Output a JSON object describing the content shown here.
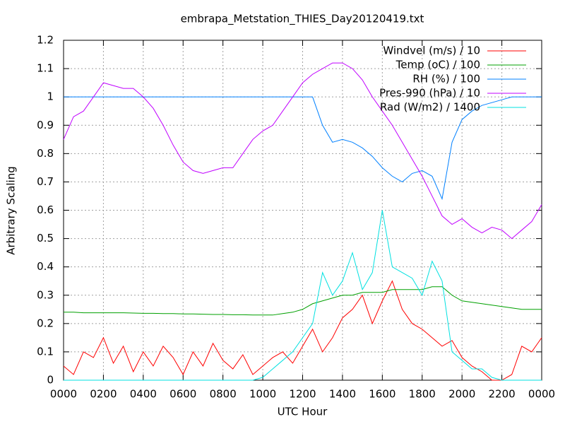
{
  "chart_data": {
    "type": "line",
    "title": "embrapa_Metstation_THIES_Day20120419.txt",
    "x_label": "UTC Hour",
    "y_label": "Arbitrary Scaling",
    "x": [
      0,
      0.5,
      1,
      1.5,
      2,
      2.5,
      3,
      3.5,
      4,
      4.5,
      5,
      5.5,
      6,
      6.5,
      7,
      7.5,
      8,
      8.5,
      9,
      9.5,
      10,
      10.5,
      11,
      11.5,
      12,
      12.5,
      13,
      13.5,
      14,
      14.5,
      15,
      15.5,
      16,
      16.5,
      17,
      17.5,
      18,
      18.5,
      19,
      19.5,
      20,
      20.5,
      21,
      21.5,
      22,
      22.5,
      23,
      23.5,
      24
    ],
    "series": [
      {
        "name": "Windvel (m/s) / 10",
        "color": "#ff0000",
        "values": [
          0.05,
          0.02,
          0.1,
          0.08,
          0.15,
          0.06,
          0.12,
          0.03,
          0.1,
          0.05,
          0.12,
          0.08,
          0.02,
          0.1,
          0.05,
          0.13,
          0.07,
          0.04,
          0.09,
          0.02,
          0.05,
          0.08,
          0.1,
          0.06,
          0.12,
          0.18,
          0.1,
          0.15,
          0.22,
          0.25,
          0.3,
          0.2,
          0.28,
          0.35,
          0.25,
          0.2,
          0.18,
          0.15,
          0.12,
          0.14,
          0.08,
          0.05,
          0.03,
          0,
          0,
          0.02,
          0.12,
          0.1,
          0.15
        ]
      },
      {
        "name": "Temp (oC) / 100",
        "color": "#00a000",
        "values": [
          0.24,
          0.24,
          0.238,
          0.238,
          0.238,
          0.238,
          0.238,
          0.237,
          0.236,
          0.236,
          0.235,
          0.235,
          0.234,
          0.234,
          0.233,
          0.232,
          0.232,
          0.231,
          0.231,
          0.23,
          0.23,
          0.23,
          0.235,
          0.24,
          0.25,
          0.27,
          0.28,
          0.29,
          0.3,
          0.3,
          0.31,
          0.31,
          0.31,
          0.32,
          0.32,
          0.32,
          0.32,
          0.33,
          0.33,
          0.3,
          0.28,
          0.275,
          0.27,
          0.265,
          0.26,
          0.255,
          0.25,
          0.25,
          0.25
        ]
      },
      {
        "name": "RH (%) / 100",
        "color": "#0080ff",
        "values": [
          1,
          1,
          1,
          1,
          1,
          1,
          1,
          1,
          1,
          1,
          1,
          1,
          1,
          1,
          1,
          1,
          1,
          1,
          1,
          1,
          1,
          1,
          1,
          1,
          1,
          1,
          0.9,
          0.84,
          0.85,
          0.84,
          0.82,
          0.79,
          0.75,
          0.72,
          0.7,
          0.73,
          0.74,
          0.72,
          0.64,
          0.84,
          0.92,
          0.95,
          0.97,
          0.98,
          0.99,
          1,
          1,
          1,
          1
        ]
      },
      {
        "name": "Pres-990 (hPa) / 10",
        "color": "#c000ff",
        "values": [
          0.85,
          0.93,
          0.95,
          1,
          1.05,
          1.04,
          1.03,
          1.03,
          1,
          0.96,
          0.9,
          0.83,
          0.77,
          0.74,
          0.73,
          0.74,
          0.75,
          0.75,
          0.8,
          0.85,
          0.88,
          0.9,
          0.95,
          1,
          1.05,
          1.08,
          1.1,
          1.12,
          1.12,
          1.1,
          1.06,
          1,
          0.95,
          0.9,
          0.84,
          0.78,
          0.72,
          0.65,
          0.58,
          0.55,
          0.57,
          0.54,
          0.52,
          0.54,
          0.53,
          0.5,
          0.53,
          0.56,
          0.62
        ]
      },
      {
        "name": "Rad (W/m2) / 1400",
        "color": "#00e0e0",
        "values": [
          0,
          0,
          0,
          0,
          0,
          0,
          0,
          0,
          0,
          0,
          0,
          0,
          0,
          0,
          0,
          0,
          0,
          0,
          0,
          0,
          0.01,
          0.04,
          0.07,
          0.1,
          0.15,
          0.2,
          0.38,
          0.3,
          0.35,
          0.45,
          0.32,
          0.38,
          0.6,
          0.4,
          0.38,
          0.36,
          0.3,
          0.42,
          0.35,
          0.1,
          0.07,
          0.04,
          0.04,
          0.01,
          0,
          0,
          0,
          0,
          0
        ]
      }
    ],
    "xlim": [
      0,
      24
    ],
    "xticks": [
      {
        "value": 0,
        "label": "0000"
      },
      {
        "value": 2,
        "label": "0200"
      },
      {
        "value": 4,
        "label": "0400"
      },
      {
        "value": 6,
        "label": "0600"
      },
      {
        "value": 8,
        "label": "0800"
      },
      {
        "value": 10,
        "label": "1000"
      },
      {
        "value": 12,
        "label": "1200"
      },
      {
        "value": 14,
        "label": "1400"
      },
      {
        "value": 16,
        "label": "1600"
      },
      {
        "value": 18,
        "label": "1800"
      },
      {
        "value": 20,
        "label": "2000"
      },
      {
        "value": 22,
        "label": "2200"
      },
      {
        "value": 24,
        "label": "0000"
      }
    ],
    "ylim": [
      0,
      1.2
    ],
    "yticks": [
      0,
      0.1,
      0.2,
      0.3,
      0.4,
      0.5,
      0.6,
      0.7,
      0.8,
      0.9,
      1,
      1.1,
      1.2
    ],
    "grid": true,
    "legend": "upper right"
  }
}
